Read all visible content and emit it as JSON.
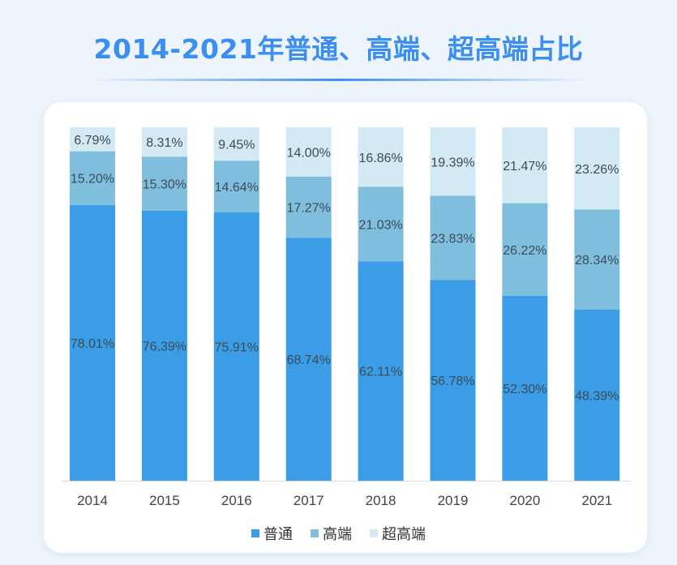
{
  "chart_data": {
    "type": "bar",
    "stacked": true,
    "title": "2014-2021年普通、高端、超高端占比",
    "xlabel": "",
    "ylabel": "",
    "ylim": [
      0,
      100
    ],
    "categories": [
      "2014",
      "2015",
      "2016",
      "2017",
      "2018",
      "2019",
      "2020",
      "2021"
    ],
    "series": [
      {
        "name": "普通",
        "color": "#3a9de6",
        "values": [
          78.01,
          76.39,
          75.91,
          68.74,
          62.11,
          56.78,
          52.3,
          48.39
        ],
        "labels": [
          "78.01%",
          "76.39%",
          "75.91%",
          "68.74%",
          "62.11%",
          "56.78%",
          "52.30%",
          "48.39%"
        ]
      },
      {
        "name": "高端",
        "color": "#7fbfdd",
        "values": [
          15.2,
          15.3,
          14.64,
          17.27,
          21.03,
          23.83,
          26.22,
          28.34
        ],
        "labels": [
          "15.20%",
          "15.30%",
          "14.64%",
          "17.27%",
          "21.03%",
          "23.83%",
          "26.22%",
          "28.34%"
        ]
      },
      {
        "name": "超高端",
        "color": "#d3e9f3",
        "values": [
          6.79,
          8.31,
          9.45,
          14.0,
          16.86,
          19.39,
          21.47,
          23.26
        ],
        "labels": [
          "6.79%",
          "8.31%",
          "9.45%",
          "14.00%",
          "16.86%",
          "19.39%",
          "21.47%",
          "23.26%"
        ]
      }
    ],
    "legend_position": "bottom"
  }
}
